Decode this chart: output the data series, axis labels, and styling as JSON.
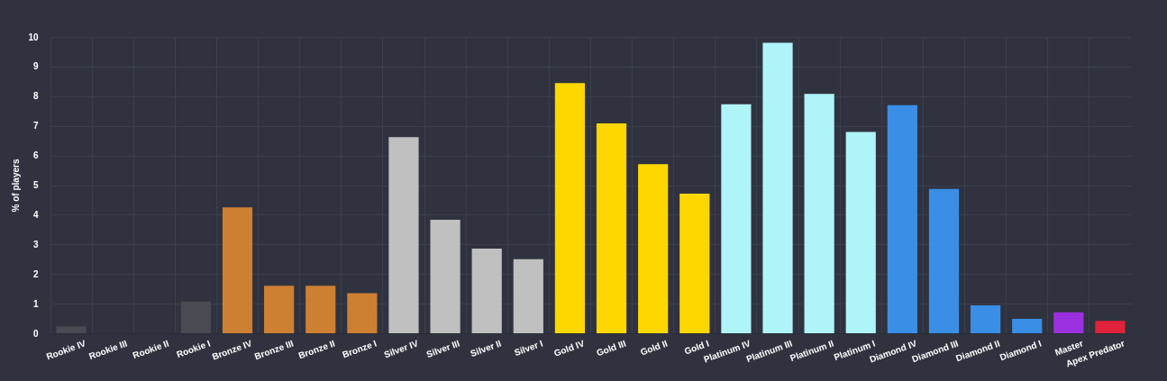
{
  "chart_data": {
    "type": "bar",
    "ylabel": "% of players",
    "categories": [
      "Rookie IV",
      "Rookie III",
      "Rookie II",
      "Rookie I",
      "Bronze IV",
      "Bronze III",
      "Bronze II",
      "Bronze I",
      "Silver IV",
      "Silver III",
      "Silver II",
      "Silver I",
      "Gold IV",
      "Gold III",
      "Gold II",
      "Gold I",
      "Platinum IV",
      "Platinum III",
      "Platinum II",
      "Platinum I",
      "Diamond IV",
      "Diamond III",
      "Diamond II",
      "Diamond I",
      "Master",
      "Apex Predator"
    ],
    "values": [
      0.23,
      0,
      0,
      1.07,
      4.25,
      1.6,
      1.6,
      1.35,
      6.62,
      3.83,
      2.86,
      2.5,
      8.44,
      7.08,
      5.71,
      4.71,
      7.73,
      9.8,
      8.08,
      6.79,
      7.7,
      4.87,
      0.94,
      0.49,
      0.71,
      0.42
    ],
    "colors": [
      "#4a4a52",
      "#4a4a52",
      "#4a4a52",
      "#4a4a52",
      "#cd7f32",
      "#cd7f32",
      "#cd7f32",
      "#cd7f32",
      "#c0c0c0",
      "#c0c0c0",
      "#c0c0c0",
      "#c0c0c0",
      "#ffd700",
      "#ffd700",
      "#ffd700",
      "#ffd700",
      "#aff4f9",
      "#aff4f9",
      "#aff4f9",
      "#aff4f9",
      "#3a8ee6",
      "#3a8ee6",
      "#3a8ee6",
      "#3a8ee6",
      "#9b30e0",
      "#e0223a"
    ],
    "ylim": [
      0,
      10
    ],
    "yticks": [
      0,
      1,
      2,
      3,
      4,
      5,
      6,
      7,
      8,
      9,
      10
    ],
    "grid": true
  }
}
